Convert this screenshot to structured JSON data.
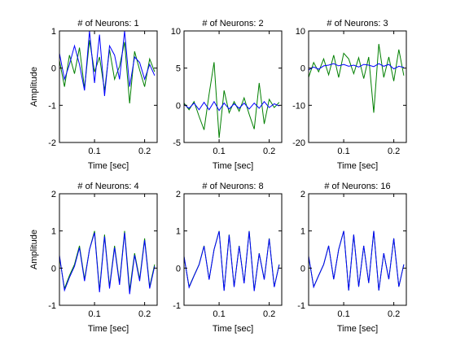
{
  "figure": {
    "background": "#ffffff",
    "series_colors": {
      "reference": "#007f00",
      "reconstruction": "#0000ff"
    }
  },
  "chart_data": [
    {
      "type": "line",
      "title": "# of Neurons: 1",
      "xlabel": "Time [sec]",
      "ylabel": "Amplitude",
      "xlim": [
        0.03,
        0.225
      ],
      "ylim": [
        -2,
        1
      ],
      "xticks": [
        0.1,
        0.2
      ],
      "xtick_labels": [
        "0.1",
        "0.2"
      ],
      "yticks": [
        -2,
        -1,
        0,
        1
      ],
      "ytick_labels": [
        "-2",
        "-1",
        "0",
        "1"
      ],
      "x": [
        0.03,
        0.04,
        0.05,
        0.06,
        0.07,
        0.08,
        0.09,
        0.1,
        0.11,
        0.12,
        0.13,
        0.14,
        0.15,
        0.16,
        0.17,
        0.18,
        0.19,
        0.2,
        0.21,
        0.22
      ],
      "series": [
        {
          "color": "#007f00",
          "values": [
            0.2,
            -0.5,
            0.35,
            -0.15,
            0.55,
            -0.55,
            0.75,
            -0.1,
            0.3,
            -0.6,
            0.5,
            -0.3,
            0.05,
            0.7,
            -0.95,
            0.45,
            -0.05,
            -0.5,
            0.25,
            -0.1
          ]
        },
        {
          "color": "#0000ff",
          "values": [
            0.4,
            -0.3,
            0.1,
            0.6,
            0.1,
            -0.6,
            1.0,
            -0.4,
            0.9,
            -0.75,
            0.6,
            0.35,
            -0.3,
            1.0,
            -0.5,
            0.3,
            0.15,
            -0.3,
            0.1,
            -0.2
          ]
        }
      ]
    },
    {
      "type": "line",
      "title": "# of Neurons: 2",
      "xlabel": "Time [sec]",
      "ylabel": "",
      "xlim": [
        0.03,
        0.225
      ],
      "ylim": [
        -5,
        10
      ],
      "xticks": [
        0.1,
        0.2
      ],
      "xtick_labels": [
        "0.1",
        "0.2"
      ],
      "yticks": [
        -5,
        0,
        5,
        10
      ],
      "ytick_labels": [
        "-5",
        "0",
        "5",
        "10"
      ],
      "x": [
        0.03,
        0.04,
        0.05,
        0.06,
        0.07,
        0.08,
        0.09,
        0.1,
        0.11,
        0.12,
        0.13,
        0.14,
        0.15,
        0.16,
        0.17,
        0.18,
        0.19,
        0.2,
        0.21,
        0.22
      ],
      "series": [
        {
          "color": "#007f00",
          "values": [
            0.3,
            -0.6,
            0.5,
            -1.5,
            -3.3,
            1.5,
            5.8,
            -4.4,
            2.0,
            -1.0,
            0.5,
            -0.8,
            1.0,
            -1.2,
            -3.2,
            3.0,
            -2.5,
            0.8,
            -0.3,
            0.4
          ]
        },
        {
          "color": "#0000ff",
          "values": [
            0.1,
            -0.4,
            0.3,
            -0.6,
            0.4,
            -0.6,
            0.5,
            -0.7,
            0.3,
            -0.5,
            0.2,
            -0.4,
            0.3,
            -0.5,
            0.3,
            -0.4,
            0.5,
            -0.3,
            0.2,
            -0.1
          ]
        }
      ]
    },
    {
      "type": "line",
      "title": "# of Neurons: 3",
      "xlabel": "Time [sec]",
      "ylabel": "",
      "xlim": [
        0.03,
        0.225
      ],
      "ylim": [
        -20,
        10
      ],
      "xticks": [
        0.1,
        0.2
      ],
      "xtick_labels": [
        "0.1",
        "0.2"
      ],
      "yticks": [
        -20,
        -10,
        0,
        10
      ],
      "ytick_labels": [
        "-20",
        "-10",
        "0",
        "10"
      ],
      "x": [
        0.03,
        0.04,
        0.05,
        0.06,
        0.07,
        0.08,
        0.09,
        0.1,
        0.11,
        0.12,
        0.13,
        0.14,
        0.15,
        0.16,
        0.17,
        0.18,
        0.19,
        0.2,
        0.21,
        0.22
      ],
      "series": [
        {
          "color": "#007f00",
          "values": [
            -2.5,
            1.5,
            -1.0,
            2.5,
            -1.8,
            3.5,
            -2.5,
            4.0,
            2.5,
            -1.5,
            2.8,
            -2.8,
            3.0,
            -12.0,
            6.5,
            -2.5,
            3.0,
            -3.5,
            5.0,
            -2.0
          ]
        },
        {
          "color": "#0000ff",
          "values": [
            -0.5,
            0.3,
            -0.3,
            0.6,
            0.8,
            1.2,
            0.6,
            1.0,
            0.5,
            0.8,
            0.3,
            1.0,
            0.8,
            0.4,
            1.2,
            0.5,
            1.0,
            -0.2,
            0.5,
            0.2
          ]
        }
      ]
    },
    {
      "type": "line",
      "title": "# of Neurons: 4",
      "xlabel": "Time [sec]",
      "ylabel": "Amplitude",
      "xlim": [
        0.03,
        0.225
      ],
      "ylim": [
        -1,
        2
      ],
      "xticks": [
        0.1,
        0.2
      ],
      "xtick_labels": [
        "0.1",
        "0.2"
      ],
      "yticks": [
        -1,
        0,
        1,
        2
      ],
      "ytick_labels": [
        "-1",
        "0",
        "1",
        "2"
      ],
      "x": [
        0.03,
        0.04,
        0.05,
        0.06,
        0.07,
        0.08,
        0.09,
        0.1,
        0.11,
        0.12,
        0.13,
        0.14,
        0.15,
        0.16,
        0.17,
        0.18,
        0.19,
        0.2,
        0.21,
        0.22
      ],
      "series": [
        {
          "color": "#007f00",
          "values": [
            0.3,
            -0.55,
            -0.2,
            0.1,
            0.6,
            -0.3,
            0.5,
            1.0,
            -0.6,
            0.9,
            -0.5,
            0.6,
            -0.4,
            1.0,
            -0.6,
            0.4,
            -0.3,
            0.8,
            -0.5,
            0.1
          ]
        },
        {
          "color": "#0000ff",
          "values": [
            0.35,
            -0.6,
            -0.25,
            0.05,
            0.55,
            -0.35,
            0.5,
            0.95,
            -0.65,
            0.85,
            -0.55,
            0.55,
            -0.45,
            0.95,
            -0.7,
            0.35,
            -0.35,
            0.75,
            -0.55,
            0.05
          ]
        }
      ]
    },
    {
      "type": "line",
      "title": "# of Neurons: 8",
      "xlabel": "Time [sec]",
      "ylabel": "",
      "xlim": [
        0.03,
        0.225
      ],
      "ylim": [
        -1,
        2
      ],
      "xticks": [
        0.1,
        0.2
      ],
      "xtick_labels": [
        "0.1",
        "0.2"
      ],
      "yticks": [
        -1,
        0,
        1,
        2
      ],
      "ytick_labels": [
        "-1",
        "0",
        "1",
        "2"
      ],
      "x": [
        0.03,
        0.04,
        0.05,
        0.06,
        0.07,
        0.08,
        0.09,
        0.1,
        0.11,
        0.12,
        0.13,
        0.14,
        0.15,
        0.16,
        0.17,
        0.18,
        0.19,
        0.2,
        0.21,
        0.22
      ],
      "series": [
        {
          "color": "#007f00",
          "values": [
            0.3,
            -0.5,
            -0.2,
            0.1,
            0.6,
            -0.3,
            0.5,
            1.0,
            -0.6,
            0.9,
            -0.5,
            0.6,
            -0.4,
            1.0,
            -0.6,
            0.4,
            -0.3,
            0.8,
            -0.5,
            0.1
          ]
        },
        {
          "color": "#0000ff",
          "values": [
            0.32,
            -0.52,
            -0.21,
            0.09,
            0.59,
            -0.31,
            0.5,
            0.99,
            -0.61,
            0.89,
            -0.51,
            0.59,
            -0.41,
            0.99,
            -0.62,
            0.39,
            -0.31,
            0.79,
            -0.51,
            0.09
          ]
        }
      ]
    },
    {
      "type": "line",
      "title": "# of Neurons: 16",
      "xlabel": "Time [sec]",
      "ylabel": "",
      "xlim": [
        0.03,
        0.225
      ],
      "ylim": [
        -1,
        2
      ],
      "xticks": [
        0.1,
        0.2
      ],
      "xtick_labels": [
        "0.1",
        "0.2"
      ],
      "yticks": [
        -1,
        0,
        1,
        2
      ],
      "ytick_labels": [
        "-1",
        "0",
        "1",
        "2"
      ],
      "x": [
        0.03,
        0.04,
        0.05,
        0.06,
        0.07,
        0.08,
        0.09,
        0.1,
        0.11,
        0.12,
        0.13,
        0.14,
        0.15,
        0.16,
        0.17,
        0.18,
        0.19,
        0.2,
        0.21,
        0.22
      ],
      "series": [
        {
          "color": "#007f00",
          "values": [
            0.3,
            -0.5,
            -0.2,
            0.1,
            0.6,
            -0.3,
            0.5,
            1.0,
            -0.6,
            0.9,
            -0.5,
            0.6,
            -0.4,
            1.0,
            -0.6,
            0.4,
            -0.3,
            0.8,
            -0.5,
            0.1
          ]
        },
        {
          "color": "#0000ff",
          "values": [
            0.33,
            -0.51,
            -0.2,
            0.1,
            0.6,
            -0.3,
            0.5,
            1.0,
            -0.6,
            0.9,
            -0.5,
            0.6,
            -0.4,
            1.0,
            -0.6,
            0.4,
            -0.3,
            0.8,
            -0.5,
            0.1
          ]
        }
      ]
    }
  ]
}
